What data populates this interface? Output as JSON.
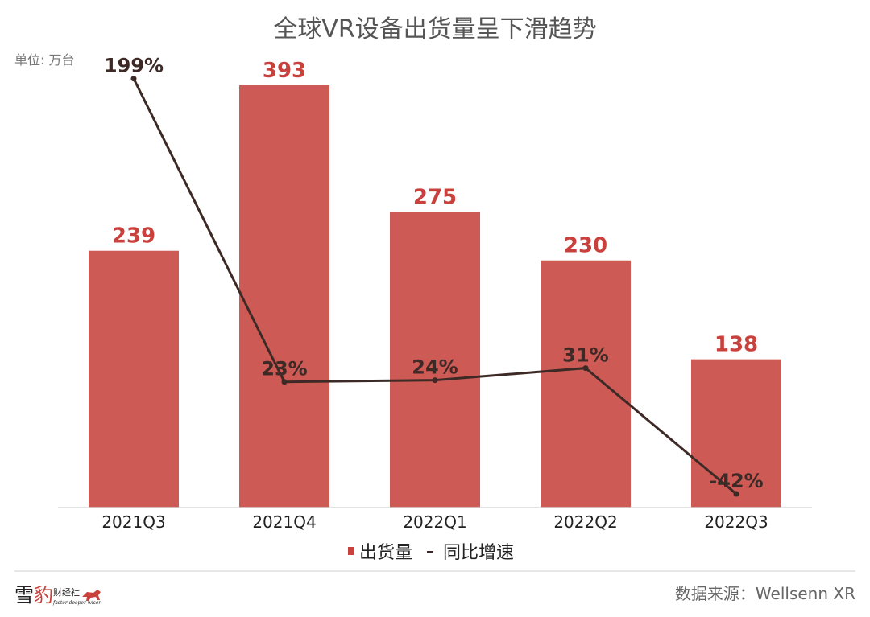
{
  "chart_data": {
    "type": "bar+line",
    "title": "全球VR设备出货量呈下滑趋势",
    "unit_label": "单位: 万台",
    "categories": [
      "2021Q3",
      "2021Q4",
      "2022Q1",
      "2022Q2",
      "2022Q3"
    ],
    "series": [
      {
        "name": "出货量",
        "type": "bar",
        "values": [
          239,
          393,
          275,
          230,
          138
        ],
        "labels": [
          "239",
          "393",
          "275",
          "230",
          "138"
        ],
        "color": "#cd5a55"
      },
      {
        "name": "同比增速",
        "type": "line",
        "values": [
          199,
          23,
          24,
          31,
          -42
        ],
        "labels": [
          "199%",
          "23%",
          "24%",
          "31%",
          "-42%"
        ],
        "color": "#3d2a26"
      }
    ],
    "legend": "bottom",
    "grid": false
  },
  "footer": {
    "source": "数据来源：Wellsenn XR",
    "logo_text": "雪豹财经社",
    "logo_tagline": "faster deeper wiser"
  }
}
